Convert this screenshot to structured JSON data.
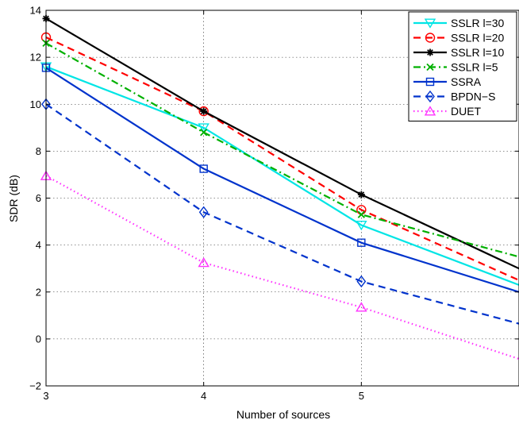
{
  "chart_data": {
    "type": "line",
    "title": "",
    "xlabel": "Number of sources",
    "ylabel": "SDR (dB)",
    "xlim": [
      3,
      6
    ],
    "ylim": [
      -2,
      14
    ],
    "x_ticks": [
      3,
      4,
      5
    ],
    "y_ticks": [
      -2,
      0,
      2,
      4,
      6,
      8,
      10,
      12,
      14
    ],
    "grid": true,
    "legend_position": "top-right",
    "x": [
      3,
      4,
      5,
      6
    ],
    "series": [
      {
        "name": "SSLR l=30",
        "values": [
          11.6,
          9.0,
          4.85,
          2.3
        ],
        "color": "#00e5e5",
        "dash": "solid",
        "marker": "triangle-down"
      },
      {
        "name": "SSLR l=20",
        "values": [
          12.85,
          9.7,
          5.5,
          2.5
        ],
        "color": "#ff0000",
        "dash": "dashed",
        "marker": "circle"
      },
      {
        "name": "SSLR l=10",
        "values": [
          13.65,
          9.7,
          6.15,
          3.0
        ],
        "color": "#000000",
        "dash": "solid",
        "marker": "star"
      },
      {
        "name": "SSLR l=5",
        "values": [
          12.6,
          8.8,
          5.3,
          3.5
        ],
        "color": "#00b000",
        "dash": "dashdot",
        "marker": "x"
      },
      {
        "name": "SSRA",
        "values": [
          11.55,
          7.25,
          4.1,
          2.0
        ],
        "color": "#0033cc",
        "dash": "solid",
        "marker": "square"
      },
      {
        "name": "BPDN−S",
        "values": [
          10.0,
          5.4,
          2.45,
          0.65
        ],
        "color": "#0033cc",
        "dash": "dashed",
        "marker": "diamond"
      },
      {
        "name": "DUET",
        "values": [
          6.95,
          3.25,
          1.35,
          -0.85
        ],
        "color": "#ff33ff",
        "dash": "dotted",
        "marker": "triangle-up"
      }
    ]
  }
}
